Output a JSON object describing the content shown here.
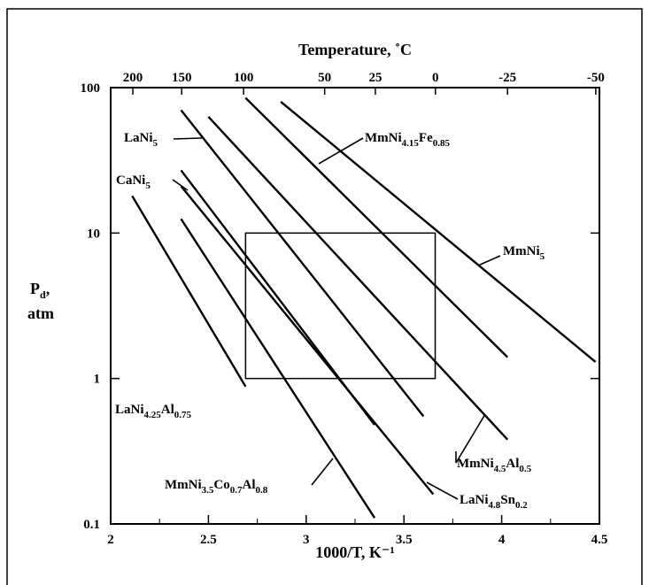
{
  "chart_data": {
    "type": "line",
    "xlabel": "1000/T, K⁻¹",
    "x2label": "Temperature, ˚C",
    "ylabel": [
      "P",
      "d",
      ",",
      "atm"
    ],
    "xlim": [
      2,
      4.5
    ],
    "ylim": [
      0.1,
      100
    ],
    "yscale": "log",
    "x_ticks": [
      "2",
      "2.5",
      "3",
      "3.5",
      "4",
      "4.5"
    ],
    "y_ticks": [
      "0.1",
      "1",
      "10",
      "100"
    ],
    "top_ticks": [
      {
        "label": "200",
        "celsius": 200
      },
      {
        "label": "150",
        "celsius": 150
      },
      {
        "label": "100",
        "celsius": 100
      },
      {
        "label": "50",
        "celsius": 50
      },
      {
        "label": "25",
        "celsius": 25
      },
      {
        "label": "0",
        "celsius": 0
      },
      {
        "label": "-25",
        "celsius": -25
      },
      {
        "label": "-50",
        "celsius": -50
      }
    ],
    "box": {
      "x": [
        2.69,
        3.66
      ],
      "y": [
        1,
        10
      ]
    },
    "series": [
      {
        "name": "MmNi5",
        "label": [
          "MmNi",
          "5"
        ],
        "x": [
          2.87,
          4.48
        ],
        "y": [
          80,
          1.3
        ]
      },
      {
        "name": "MmNi4.15Fe0.85",
        "label": [
          "MmNi",
          "4.15",
          "Fe",
          "0.85"
        ],
        "x": [
          2.69,
          4.03
        ],
        "y": [
          85,
          1.4
        ]
      },
      {
        "name": "LaNi5",
        "label": [
          "LaNi",
          "5"
        ],
        "x": [
          2.36,
          3.6
        ],
        "y": [
          70,
          0.55
        ]
      },
      {
        "name": "MmNi4.5Al0.5",
        "label": [
          "MmNi",
          "4.5",
          "Al",
          "0.5"
        ],
        "x": [
          2.5,
          4.03
        ],
        "y": [
          63,
          0.38
        ]
      },
      {
        "name": "CaNi5",
        "label": [
          "CaNi",
          "5"
        ],
        "x": [
          2.36,
          3.35
        ],
        "y": [
          27,
          0.48
        ]
      },
      {
        "name": "LaNi4.8Sn0.2",
        "label": [
          "LaNi",
          "4.8",
          "Sn",
          "0.2"
        ],
        "x": [
          2.36,
          3.65
        ],
        "y": [
          21,
          0.16
        ]
      },
      {
        "name": "LaNi4.25Al0.75",
        "label": [
          "LaNi",
          "4.25",
          "Al",
          "0.75"
        ],
        "x": [
          2.11,
          2.69
        ],
        "y": [
          18,
          0.88
        ]
      },
      {
        "name": "MmNi3.5Co0.7Al0.8",
        "label": [
          "MmNi",
          "3.5",
          "Co",
          "0.7",
          "Al",
          "0.8"
        ],
        "x": [
          2.36,
          3.35
        ],
        "y": [
          12.5,
          0.11
        ]
      }
    ]
  }
}
